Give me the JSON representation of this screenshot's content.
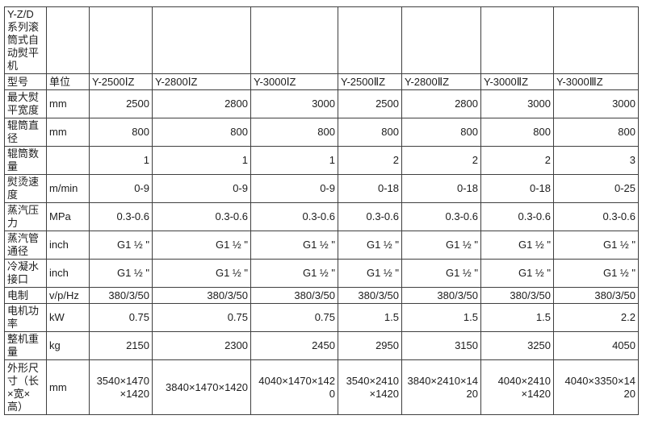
{
  "table": {
    "series_title": "Y-Z/D\n系列滚\n筒式自\n动熨平\n机",
    "model_row": {
      "label": "型号",
      "unit_header": "单位",
      "models": [
        "Y-2500ⅠZ",
        "Y-2800ⅠZ",
        "Y-3000ⅠZ",
        "Y-2500ⅡZ",
        "Y-2800ⅡZ",
        "Y-3000ⅡZ",
        "Y-3000ⅢZ"
      ]
    },
    "specs": [
      {
        "label": "最大熨\n平宽度",
        "unit": "mm",
        "values": [
          "2500",
          "2800",
          "3000",
          "2500",
          "2800",
          "3000",
          "3000"
        ]
      },
      {
        "label": "辊筒直\n径",
        "unit": "mm",
        "values": [
          "800",
          "800",
          "800",
          "800",
          "800",
          "800",
          "800"
        ]
      },
      {
        "label": "辊筒数\n量",
        "unit": "",
        "values": [
          "1",
          "1",
          "1",
          "2",
          "2",
          "2",
          "3"
        ]
      },
      {
        "label": "熨烫速\n度",
        "unit": "m/min",
        "values": [
          "0-9",
          "0-9",
          "0-9",
          "0-18",
          "0-18",
          "0-18",
          "0-25"
        ]
      },
      {
        "label": "蒸汽压\n力",
        "unit": "MPa",
        "values": [
          "0.3-0.6",
          "0.3-0.6",
          "0.3-0.6",
          "0.3-0.6",
          "0.3-0.6",
          "0.3-0.6",
          "0.3-0.6"
        ]
      },
      {
        "label": "蒸汽管\n通径",
        "unit": "inch",
        "values": [
          "G1 ½ \"",
          "G1 ½ \"",
          "G1 ½ \"",
          "G1 ½ \"",
          "G1 ½ \"",
          "G1 ½ \"",
          "G1 ½ \""
        ]
      },
      {
        "label": "冷凝水\n接口",
        "unit": "inch",
        "values": [
          "G1 ½ \"",
          "G1 ½ \"",
          "G1 ½ \"",
          "G1 ½ \"",
          "G1 ½ \"",
          "G1 ½ \"",
          "G1 ½ \""
        ]
      },
      {
        "label": "电制",
        "unit": "v/p/Hz",
        "values": [
          "380/3/50",
          "380/3/50",
          "380/3/50",
          "380/3/50",
          "380/3/50",
          "380/3/50",
          "380/3/50"
        ]
      },
      {
        "label": "电机功\n率",
        "unit": "kW",
        "values": [
          "0.75",
          "0.75",
          "0.75",
          "1.5",
          "1.5",
          "1.5",
          "2.2"
        ]
      },
      {
        "label": "整机重\n量",
        "unit": "kg",
        "values": [
          "2150",
          "2300",
          "2450",
          "2950",
          "3150",
          "3250",
          "4050"
        ]
      },
      {
        "label": "外形尺\n寸（长\n×宽×\n高）",
        "unit": "mm",
        "values": [
          "3540×1470\n×1420",
          "3840×1470×1420",
          "4040×1470×142\n0",
          "3540×2410\n×1420",
          "3840×2410×14\n20",
          "4040×2410\n×1420",
          "4040×3350×14\n20"
        ]
      }
    ],
    "colors": {
      "background": "#ffffff",
      "border": "#3f3f3f",
      "text": "#1c1c1c"
    }
  }
}
